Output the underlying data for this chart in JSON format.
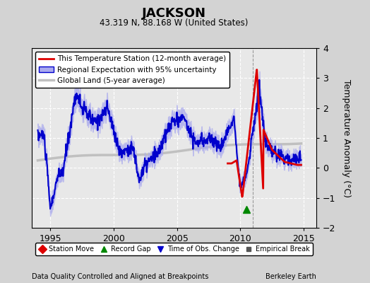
{
  "title": "JACKSON",
  "subtitle": "43.319 N, 88.168 W (United States)",
  "ylabel": "Temperature Anomaly (°C)",
  "xlabel_left": "Data Quality Controlled and Aligned at Breakpoints",
  "xlabel_right": "Berkeley Earth",
  "xlim": [
    1993.5,
    2016.0
  ],
  "ylim": [
    -2.0,
    4.0
  ],
  "yticks": [
    -2,
    -1,
    0,
    1,
    2,
    3,
    4
  ],
  "xticks": [
    1995,
    2000,
    2005,
    2010,
    2015
  ],
  "bg_color": "#d3d3d3",
  "plot_bg_color": "#e8e8e8",
  "grid_color": "#ffffff",
  "blue_line_color": "#0000cc",
  "blue_fill_color": "#aaaaee",
  "red_line_color": "#dd0000",
  "gray_line_color": "#c0c0c0",
  "vertical_line_x": 2011.0,
  "record_gap_x": 2010.5,
  "record_gap_y": -1.38,
  "legend_items": [
    {
      "label": "This Temperature Station (12-month average)",
      "color": "#dd0000",
      "lw": 2.0
    },
    {
      "label": "Regional Expectation with 95% uncertainty",
      "color": "#0000cc",
      "lw": 2.0
    },
    {
      "label": "Global Land (5-year average)",
      "color": "#c0c0c0",
      "lw": 2.5
    }
  ],
  "bottom_legend": [
    {
      "label": "Station Move",
      "marker": "D",
      "color": "#dd0000"
    },
    {
      "label": "Record Gap",
      "marker": "^",
      "color": "#008800"
    },
    {
      "label": "Time of Obs. Change",
      "marker": "v",
      "color": "#0000cc"
    },
    {
      "label": "Empirical Break",
      "marker": "s",
      "color": "#555555"
    }
  ]
}
